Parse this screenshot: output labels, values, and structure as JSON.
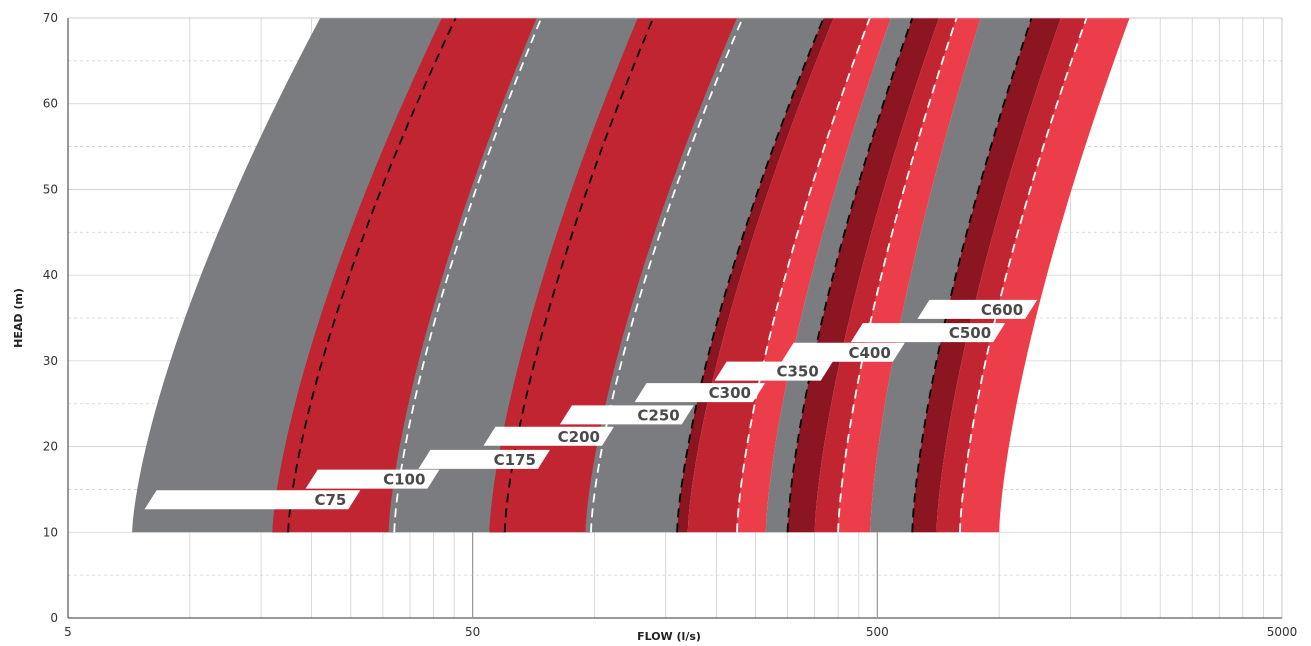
{
  "chart_data": {
    "type": "area",
    "title": "",
    "xlabel": "FLOW (l/s)",
    "ylabel": "HEAD (m)",
    "x_scale": "log",
    "xlim": [
      5,
      5000
    ],
    "ylim": [
      0,
      70
    ],
    "x_ticks": [
      5,
      50,
      500,
      5000
    ],
    "y_ticks": [
      0,
      10,
      20,
      30,
      40,
      50,
      60,
      70
    ],
    "grid": true,
    "legend": "none",
    "head_min": 10,
    "head_max": 70,
    "curve_exponent": 1.45,
    "colors": {
      "grey": "#7a7c80",
      "dark_red": "#8c1522",
      "red": "#c22532",
      "light_red": "#ec3d4a",
      "label_bg": "#ffffff",
      "label_text": "#4a4a4a",
      "grid": "#d0d0d0",
      "axis": "#333333"
    },
    "series": [
      {
        "name": "C75",
        "flow_at_head_10": [
          7.2,
          16.0
        ],
        "flow_at_head_70": [
          21.0,
          42.0
        ],
        "dashed_line_flow_at_head_10": 17.5,
        "dashed_color": "#000000",
        "shades": [
          "grey",
          "dark_red"
        ],
        "label_head": 13.8,
        "label_flow": [
          8.0,
          25.5
        ]
      },
      {
        "name": "C100",
        "flow_at_head_10": [
          16.0,
          31.0
        ],
        "flow_at_head_70": [
          42.0,
          72.0
        ],
        "dashed_line_flow_at_head_10": 32.0,
        "dashed_color": "#ffffff",
        "shades": [
          "red",
          "light_red"
        ],
        "label_head": 16.2,
        "label_flow": [
          20.0,
          40.0
        ]
      },
      {
        "name": "C175",
        "flow_at_head_10": [
          31.0,
          55.0
        ],
        "flow_at_head_70": [
          72.0,
          128.0
        ],
        "dashed_line_flow_at_head_10": 60.0,
        "dashed_color": "#000000",
        "shades": [
          "grey",
          "dark_red"
        ],
        "label_head": 18.5,
        "label_flow": [
          38.0,
          75.0
        ]
      },
      {
        "name": "C200",
        "flow_at_head_10": [
          55.0,
          95.0
        ],
        "flow_at_head_70": [
          128.0,
          225.0
        ],
        "dashed_line_flow_at_head_10": 98.0,
        "dashed_color": "#ffffff",
        "shades": [
          "red",
          "light_red"
        ],
        "label_head": 21.2,
        "label_flow": [
          55.0,
          108.0
        ]
      },
      {
        "name": "C250",
        "flow_at_head_10": [
          95.0,
          170.0
        ],
        "flow_at_head_70": [
          225.0,
          390.0
        ],
        "dashed_line_flow_at_head_10": 160.0,
        "dashed_color": "#000000",
        "shades": [
          "grey",
          "dark_red"
        ],
        "label_head": 23.7,
        "label_flow": [
          85.0,
          170.0
        ]
      },
      {
        "name": "C300",
        "flow_at_head_10": [
          170.0,
          265.0
        ],
        "flow_at_head_70": [
          390.0,
          540.0
        ],
        "dashed_line_flow_at_head_10": 225.0,
        "dashed_color": "#ffffff",
        "shades": [
          "red",
          "light_red"
        ],
        "label_head": 26.3,
        "label_flow": [
          130.0,
          255.0
        ]
      },
      {
        "name": "C350",
        "flow_at_head_10": [
          265.0,
          350.0
        ],
        "flow_at_head_70": [
          540.0,
          710.0
        ],
        "dashed_line_flow_at_head_10": 300.0,
        "dashed_color": "#000000",
        "shades": [
          "grey",
          "dark_red"
        ],
        "label_head": 28.8,
        "label_flow": [
          205.0,
          375.0
        ]
      },
      {
        "name": "C400",
        "flow_at_head_10": [
          350.0,
          480.0
        ],
        "flow_at_head_70": [
          710.0,
          900.0
        ],
        "dashed_line_flow_at_head_10": 400.0,
        "dashed_color": "#ffffff",
        "shades": [
          "red",
          "light_red"
        ],
        "label_head": 31.0,
        "label_flow": [
          300.0,
          565.0
        ]
      },
      {
        "name": "C500",
        "flow_at_head_10": [
          480.0,
          700.0
        ],
        "flow_at_head_70": [
          900.0,
          1420.0
        ],
        "dashed_line_flow_at_head_10": 610.0,
        "dashed_color": "#000000",
        "shades": [
          "grey",
          "dark_red"
        ],
        "label_head": 33.3,
        "label_flow": [
          445.0,
          1000.0
        ]
      },
      {
        "name": "C600",
        "flow_at_head_10": [
          700.0,
          1000.0
        ],
        "flow_at_head_70": [
          1420.0,
          2100.0
        ],
        "dashed_line_flow_at_head_10": 800.0,
        "dashed_color": "#ffffff",
        "shades": [
          "red",
          "light_red"
        ],
        "label_head": 36.0,
        "label_flow": [
          650.0,
          1200.0
        ]
      }
    ]
  }
}
